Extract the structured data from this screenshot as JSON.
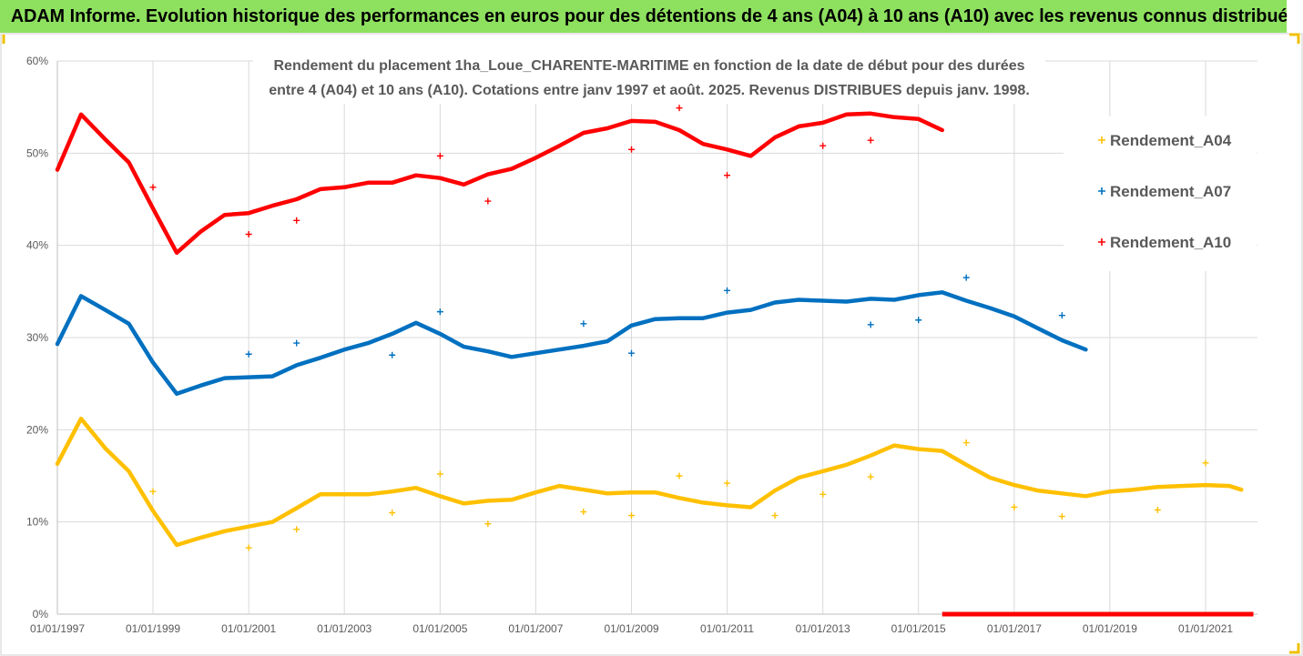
{
  "header": {
    "title": "ADAM Informe. Evolution historique des performances en euros pour des détentions de 4 ans (A04) à 10 ans (A10) avec les revenus connus distribués",
    "background": "#8ee05f"
  },
  "chart_data": {
    "type": "scatter",
    "title": "Rendement du placement 1ha_Loue_CHARENTE-MARITIME en fonction de la date de début pour des durées",
    "subtitle": "entre 4 (A04) et 10 ans (A10). Cotations entre janv 1997 et août. 2025. Revenus DISTRIBUES depuis janv. 1998.",
    "xlabel": "",
    "ylabel": "",
    "x_tick_labels": [
      "01/01/1997",
      "01/01/1999",
      "01/01/2001",
      "01/01/2003",
      "01/01/2005",
      "01/01/2007",
      "01/01/2009",
      "01/01/2011",
      "01/01/2013",
      "01/01/2015",
      "01/01/2017",
      "01/01/2019",
      "01/01/2021"
    ],
    "xlim": [
      "1997-01-01",
      "2022-02-01"
    ],
    "y_tick_labels": [
      "0%",
      "10%",
      "20%",
      "30%",
      "40%",
      "50%",
      "60%"
    ],
    "ylim": [
      0,
      60
    ],
    "grid": true,
    "legend_position": "right",
    "series": [
      {
        "name": "Rendement_A04",
        "color": "#ffc000",
        "points": [
          [
            "1997-01-01",
            16.3
          ],
          [
            "1997-07-01",
            21.2
          ],
          [
            "1998-01-01",
            18.0
          ],
          [
            "1998-07-01",
            15.5
          ],
          [
            "1999-01-01",
            11.2
          ],
          [
            "1999-07-01",
            7.5
          ],
          [
            "2000-01-01",
            8.3
          ],
          [
            "2000-07-01",
            9.0
          ],
          [
            "2001-01-01",
            9.5
          ],
          [
            "2001-07-01",
            10.0
          ],
          [
            "2002-01-01",
            11.5
          ],
          [
            "2002-07-01",
            13.0
          ],
          [
            "2003-01-01",
            13.0
          ],
          [
            "2003-07-01",
            13.0
          ],
          [
            "2004-01-01",
            13.3
          ],
          [
            "2004-07-01",
            13.7
          ],
          [
            "2005-01-01",
            12.8
          ],
          [
            "2005-07-01",
            12.0
          ],
          [
            "2006-01-01",
            12.3
          ],
          [
            "2006-07-01",
            12.4
          ],
          [
            "2007-01-01",
            13.2
          ],
          [
            "2007-07-01",
            13.9
          ],
          [
            "2008-01-01",
            13.5
          ],
          [
            "2008-07-01",
            13.1
          ],
          [
            "2009-01-01",
            13.2
          ],
          [
            "2009-07-01",
            13.2
          ],
          [
            "2010-01-01",
            12.6
          ],
          [
            "2010-07-01",
            12.1
          ],
          [
            "2011-01-01",
            11.8
          ],
          [
            "2011-07-01",
            11.6
          ],
          [
            "2012-01-01",
            13.4
          ],
          [
            "2012-07-01",
            14.8
          ],
          [
            "2013-01-01",
            15.5
          ],
          [
            "2013-07-01",
            16.2
          ],
          [
            "2014-01-01",
            17.2
          ],
          [
            "2014-07-01",
            18.3
          ],
          [
            "2015-01-01",
            17.9
          ],
          [
            "2015-07-01",
            17.7
          ],
          [
            "2016-01-01",
            16.2
          ],
          [
            "2016-07-01",
            14.8
          ],
          [
            "2017-01-01",
            14.0
          ],
          [
            "2017-07-01",
            13.4
          ],
          [
            "2018-01-01",
            13.1
          ],
          [
            "2018-07-01",
            12.8
          ],
          [
            "2019-01-01",
            13.3
          ],
          [
            "2019-07-01",
            13.5
          ],
          [
            "2020-01-01",
            13.8
          ],
          [
            "2020-07-01",
            13.9
          ],
          [
            "2021-01-01",
            14.0
          ],
          [
            "2021-07-01",
            13.9
          ],
          [
            "2021-10-01",
            13.5
          ]
        ],
        "outliers": [
          [
            "1999-01-01",
            13.3
          ],
          [
            "2001-01-01",
            7.2
          ],
          [
            "2002-01-01",
            9.2
          ],
          [
            "2004-01-01",
            11.0
          ],
          [
            "2005-01-01",
            15.2
          ],
          [
            "2006-01-01",
            9.8
          ],
          [
            "2008-01-01",
            11.1
          ],
          [
            "2009-01-01",
            10.7
          ],
          [
            "2010-01-01",
            15.0
          ],
          [
            "2011-01-01",
            14.2
          ],
          [
            "2012-01-01",
            10.7
          ],
          [
            "2013-01-01",
            13.0
          ],
          [
            "2014-01-01",
            14.9
          ],
          [
            "2016-01-01",
            18.6
          ],
          [
            "2017-01-01",
            11.6
          ],
          [
            "2018-01-01",
            10.6
          ],
          [
            "2020-01-01",
            11.3
          ],
          [
            "2021-01-01",
            16.4
          ]
        ]
      },
      {
        "name": "Rendement_A07",
        "color": "#0070c0",
        "points": [
          [
            "1997-01-01",
            29.3
          ],
          [
            "1997-07-01",
            34.5
          ],
          [
            "1998-01-01",
            33.0
          ],
          [
            "1998-07-01",
            31.5
          ],
          [
            "1999-01-01",
            27.3
          ],
          [
            "1999-07-01",
            23.9
          ],
          [
            "2000-01-01",
            24.8
          ],
          [
            "2000-07-01",
            25.6
          ],
          [
            "2001-01-01",
            25.7
          ],
          [
            "2001-07-01",
            25.8
          ],
          [
            "2002-01-01",
            27.0
          ],
          [
            "2002-07-01",
            27.8
          ],
          [
            "2003-01-01",
            28.7
          ],
          [
            "2003-07-01",
            29.4
          ],
          [
            "2004-01-01",
            30.4
          ],
          [
            "2004-07-01",
            31.6
          ],
          [
            "2005-01-01",
            30.4
          ],
          [
            "2005-07-01",
            29.0
          ],
          [
            "2006-01-01",
            28.5
          ],
          [
            "2006-07-01",
            27.9
          ],
          [
            "2007-01-01",
            28.3
          ],
          [
            "2007-07-01",
            28.7
          ],
          [
            "2008-01-01",
            29.1
          ],
          [
            "2008-07-01",
            29.6
          ],
          [
            "2009-01-01",
            31.3
          ],
          [
            "2009-07-01",
            32.0
          ],
          [
            "2010-01-01",
            32.1
          ],
          [
            "2010-07-01",
            32.1
          ],
          [
            "2011-01-01",
            32.7
          ],
          [
            "2011-07-01",
            33.0
          ],
          [
            "2012-01-01",
            33.8
          ],
          [
            "2012-07-01",
            34.1
          ],
          [
            "2013-01-01",
            34.0
          ],
          [
            "2013-07-01",
            33.9
          ],
          [
            "2014-01-01",
            34.2
          ],
          [
            "2014-07-01",
            34.1
          ],
          [
            "2015-01-01",
            34.6
          ],
          [
            "2015-07-01",
            34.9
          ],
          [
            "2016-01-01",
            34.0
          ],
          [
            "2016-07-01",
            33.2
          ],
          [
            "2017-01-01",
            32.3
          ],
          [
            "2017-07-01",
            31.0
          ],
          [
            "2018-01-01",
            29.7
          ],
          [
            "2018-07-01",
            28.7
          ]
        ],
        "outliers": [
          [
            "2001-01-01",
            28.2
          ],
          [
            "2002-01-01",
            29.4
          ],
          [
            "2004-01-01",
            28.1
          ],
          [
            "2005-01-01",
            32.8
          ],
          [
            "2008-01-01",
            31.5
          ],
          [
            "2009-01-01",
            28.3
          ],
          [
            "2011-01-01",
            35.1
          ],
          [
            "2014-01-01",
            31.4
          ],
          [
            "2015-01-01",
            31.9
          ],
          [
            "2016-01-01",
            36.5
          ],
          [
            "2018-01-01",
            32.4
          ]
        ]
      },
      {
        "name": "Rendement_A10",
        "color": "#ff0000",
        "points": [
          [
            "1997-01-01",
            48.2
          ],
          [
            "1997-07-01",
            54.2
          ],
          [
            "1998-01-01",
            51.5
          ],
          [
            "1998-07-01",
            49.0
          ],
          [
            "1999-01-01",
            44.0
          ],
          [
            "1999-07-01",
            39.2
          ],
          [
            "2000-01-01",
            41.5
          ],
          [
            "2000-07-01",
            43.3
          ],
          [
            "2001-01-01",
            43.5
          ],
          [
            "2001-07-01",
            44.3
          ],
          [
            "2002-01-01",
            45.0
          ],
          [
            "2002-07-01",
            46.1
          ],
          [
            "2003-01-01",
            46.3
          ],
          [
            "2003-07-01",
            46.8
          ],
          [
            "2004-01-01",
            46.8
          ],
          [
            "2004-07-01",
            47.6
          ],
          [
            "2005-01-01",
            47.3
          ],
          [
            "2005-07-01",
            46.6
          ],
          [
            "2006-01-01",
            47.7
          ],
          [
            "2006-07-01",
            48.3
          ],
          [
            "2007-01-01",
            49.5
          ],
          [
            "2007-07-01",
            50.8
          ],
          [
            "2008-01-01",
            52.2
          ],
          [
            "2008-07-01",
            52.7
          ],
          [
            "2009-01-01",
            53.5
          ],
          [
            "2009-07-01",
            53.4
          ],
          [
            "2010-01-01",
            52.5
          ],
          [
            "2010-07-01",
            51.0
          ],
          [
            "2011-01-01",
            50.4
          ],
          [
            "2011-07-01",
            49.7
          ],
          [
            "2012-01-01",
            51.7
          ],
          [
            "2012-07-01",
            52.9
          ],
          [
            "2013-01-01",
            53.3
          ],
          [
            "2013-07-01",
            54.2
          ],
          [
            "2014-01-01",
            54.3
          ],
          [
            "2014-07-01",
            53.9
          ],
          [
            "2015-01-01",
            53.7
          ],
          [
            "2015-07-01",
            52.5
          ]
        ],
        "outliers": [
          [
            "1999-01-01",
            46.3
          ],
          [
            "2001-01-01",
            41.2
          ],
          [
            "2002-01-01",
            42.7
          ],
          [
            "2005-01-01",
            49.7
          ],
          [
            "2006-01-01",
            44.8
          ],
          [
            "2009-01-01",
            50.4
          ],
          [
            "2010-01-01",
            54.9
          ],
          [
            "2011-01-01",
            47.6
          ],
          [
            "2013-01-01",
            50.8
          ],
          [
            "2014-01-01",
            51.4
          ]
        ],
        "zero_segment": {
          "from": "2015-07-01",
          "to": "2022-01-01",
          "value": 0
        }
      }
    ]
  }
}
